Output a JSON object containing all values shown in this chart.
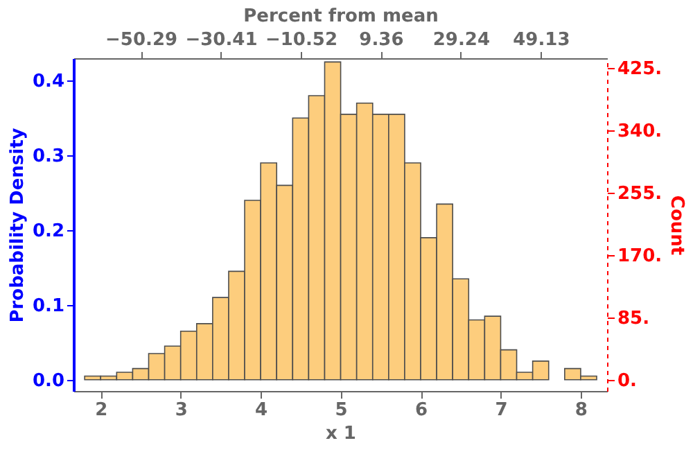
{
  "chart_data": {
    "type": "histogram",
    "xlabel": "x 1",
    "ylabel": "Probability Density",
    "y2label": "Count",
    "x2label": "Percent from mean",
    "color": "#fdcd7d",
    "bins": [
      1.8,
      2.0,
      2.2,
      2.4,
      2.6,
      2.8,
      3.0,
      3.2,
      3.4,
      3.6,
      3.8,
      4.0,
      4.2,
      4.4,
      4.6,
      4.8,
      5.0,
      5.2,
      5.4,
      5.6,
      5.8,
      6.0,
      6.2,
      6.4,
      6.6,
      6.8,
      7.0,
      7.2,
      7.4,
      7.6,
      7.8,
      8.0,
      8.2
    ],
    "values": [
      0.005,
      0.005,
      0.01,
      0.015,
      0.035,
      0.045,
      0.065,
      0.075,
      0.11,
      0.145,
      0.24,
      0.29,
      0.26,
      0.35,
      0.38,
      0.425,
      0.355,
      0.37,
      0.355,
      0.355,
      0.29,
      0.19,
      0.235,
      0.135,
      0.08,
      0.085,
      0.04,
      0.01,
      0.025,
      0,
      0.015,
      0.005
    ],
    "xlim": [
      1.66,
      8.33
    ],
    "xticks": [
      2,
      3,
      4,
      5,
      6,
      7,
      8
    ],
    "ylim": [
      -0.015,
      0.43
    ],
    "yticks": [
      {
        "value": 0,
        "label": "0.0"
      },
      {
        "value": 0.1,
        "label": "0.1"
      },
      {
        "value": 0.2,
        "label": "0.2"
      },
      {
        "value": 0.3,
        "label": "0.3"
      },
      {
        "value": 0.4,
        "label": "0.4"
      }
    ],
    "y2lim": [
      -15.3,
      438.6
    ],
    "y2ticks": [
      {
        "value": 0,
        "label": "0."
      },
      {
        "value": 85,
        "label": "85."
      },
      {
        "value": 170,
        "label": "170."
      },
      {
        "value": 255,
        "label": "255."
      },
      {
        "value": 340,
        "label": "340."
      },
      {
        "value": 425,
        "label": "425."
      }
    ],
    "x2lim": [
      -67.0,
      65.6
    ],
    "x2ticks": [
      -50.29,
      -30.41,
      -10.52,
      9.36,
      29.24,
      49.13
    ],
    "grid": false
  }
}
